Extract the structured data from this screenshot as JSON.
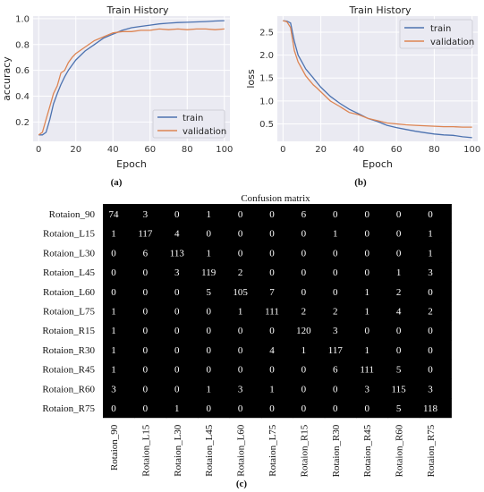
{
  "chart_data": [
    {
      "type": "line",
      "title": "Train History",
      "xlabel": "Epoch",
      "ylabel": "accuracy",
      "xlim": [
        -3,
        103
      ],
      "ylim": [
        0.05,
        1.02
      ],
      "xticks": [
        0,
        20,
        40,
        60,
        80,
        100
      ],
      "yticks": [
        0.2,
        0.4,
        0.6,
        0.8,
        1.0
      ],
      "ytick_labels": [
        "0.2",
        "0.4",
        "0.6",
        "0.8",
        "1.0"
      ],
      "grid": true,
      "legend_position": "lower-right",
      "caption": "(a)",
      "series": [
        {
          "name": "train",
          "color": "#4c72b0",
          "x": [
            0,
            2,
            4,
            6,
            8,
            10,
            12,
            14,
            16,
            18,
            20,
            25,
            30,
            35,
            40,
            45,
            50,
            55,
            60,
            65,
            70,
            75,
            80,
            85,
            90,
            95,
            100
          ],
          "y": [
            0.1,
            0.1,
            0.12,
            0.22,
            0.34,
            0.42,
            0.49,
            0.55,
            0.6,
            0.64,
            0.68,
            0.75,
            0.8,
            0.85,
            0.88,
            0.91,
            0.93,
            0.94,
            0.95,
            0.96,
            0.965,
            0.97,
            0.972,
            0.975,
            0.978,
            0.982,
            0.985
          ]
        },
        {
          "name": "validation",
          "color": "#dd8452",
          "x": [
            0,
            2,
            4,
            6,
            8,
            10,
            12,
            14,
            16,
            18,
            20,
            25,
            30,
            35,
            40,
            45,
            50,
            55,
            60,
            65,
            70,
            75,
            80,
            85,
            90,
            95,
            100
          ],
          "y": [
            0.1,
            0.12,
            0.22,
            0.32,
            0.42,
            0.48,
            0.58,
            0.6,
            0.66,
            0.7,
            0.73,
            0.78,
            0.83,
            0.86,
            0.89,
            0.9,
            0.9,
            0.91,
            0.91,
            0.92,
            0.915,
            0.92,
            0.915,
            0.92,
            0.92,
            0.915,
            0.92
          ]
        }
      ]
    },
    {
      "type": "line",
      "title": "Train History",
      "xlabel": "Epoch",
      "ylabel": "loss",
      "xlim": [
        -3,
        103
      ],
      "ylim": [
        0.12,
        2.85
      ],
      "xticks": [
        0,
        20,
        40,
        60,
        80,
        100
      ],
      "yticks": [
        0.5,
        1.0,
        1.5,
        2.0,
        2.5
      ],
      "ytick_labels": [
        "0.5",
        "1.0",
        "1.5",
        "2.0",
        "2.5"
      ],
      "grid": true,
      "legend_position": "top-right",
      "caption": "(b)",
      "series": [
        {
          "name": "train",
          "color": "#4c72b0",
          "x": [
            0,
            2,
            4,
            6,
            8,
            10,
            12,
            14,
            16,
            18,
            20,
            25,
            30,
            35,
            40,
            45,
            50,
            55,
            60,
            65,
            70,
            75,
            80,
            85,
            90,
            95,
            100
          ],
          "y": [
            2.75,
            2.74,
            2.7,
            2.3,
            2.0,
            1.85,
            1.7,
            1.6,
            1.5,
            1.4,
            1.3,
            1.1,
            0.95,
            0.82,
            0.72,
            0.62,
            0.55,
            0.47,
            0.42,
            0.38,
            0.34,
            0.31,
            0.28,
            0.26,
            0.25,
            0.22,
            0.2
          ]
        },
        {
          "name": "validation",
          "color": "#dd8452",
          "x": [
            0,
            2,
            4,
            6,
            8,
            10,
            12,
            14,
            16,
            18,
            20,
            25,
            30,
            35,
            40,
            45,
            50,
            55,
            60,
            65,
            70,
            75,
            80,
            85,
            90,
            95,
            100
          ],
          "y": [
            2.75,
            2.73,
            2.6,
            2.1,
            1.85,
            1.7,
            1.55,
            1.45,
            1.35,
            1.28,
            1.2,
            1.0,
            0.88,
            0.75,
            0.7,
            0.62,
            0.57,
            0.52,
            0.5,
            0.48,
            0.47,
            0.46,
            0.45,
            0.44,
            0.44,
            0.43,
            0.43
          ]
        }
      ]
    },
    {
      "type": "heatmap",
      "title": "Confusion matrix",
      "caption": "(c)",
      "row_labels": [
        "Rotaion_90",
        "Rotaion_L15",
        "Rotaion_L30",
        "Rotaion_L45",
        "Rotaion_L60",
        "Rotaion_L75",
        "Rotaion_R15",
        "Rotaion_R30",
        "Rotaion_R45",
        "Rotaion_R60",
        "Rotaion_R75"
      ],
      "col_labels": [
        "Rotaion_90",
        "Rotaion_L15",
        "Rotaion_L30",
        "Rotaion_L45",
        "Rotaion_L60",
        "Rotaion_L75",
        "Rotaion_R15",
        "Rotaion_R30",
        "Rotaion_R45",
        "Rotaion_R60",
        "Rotaion_R75"
      ],
      "values": [
        [
          74,
          3,
          0,
          1,
          0,
          0,
          6,
          0,
          0,
          0,
          0
        ],
        [
          1,
          117,
          4,
          0,
          0,
          0,
          0,
          1,
          0,
          0,
          1
        ],
        [
          0,
          6,
          113,
          1,
          0,
          0,
          0,
          0,
          0,
          0,
          1
        ],
        [
          0,
          0,
          3,
          119,
          2,
          0,
          0,
          0,
          0,
          1,
          3
        ],
        [
          0,
          0,
          0,
          5,
          105,
          7,
          0,
          0,
          1,
          2,
          0
        ],
        [
          1,
          0,
          0,
          0,
          1,
          111,
          2,
          2,
          1,
          4,
          2
        ],
        [
          1,
          0,
          0,
          0,
          0,
          0,
          120,
          3,
          0,
          0,
          0
        ],
        [
          1,
          0,
          0,
          0,
          0,
          4,
          1,
          117,
          1,
          0,
          0
        ],
        [
          1,
          0,
          0,
          0,
          0,
          0,
          0,
          6,
          111,
          5,
          0
        ],
        [
          3,
          0,
          0,
          1,
          3,
          1,
          0,
          0,
          3,
          115,
          3
        ],
        [
          0,
          0,
          1,
          0,
          0,
          0,
          0,
          0,
          0,
          5,
          118
        ]
      ],
      "cell_color": "#000000",
      "text_color": "#ffffff"
    }
  ]
}
